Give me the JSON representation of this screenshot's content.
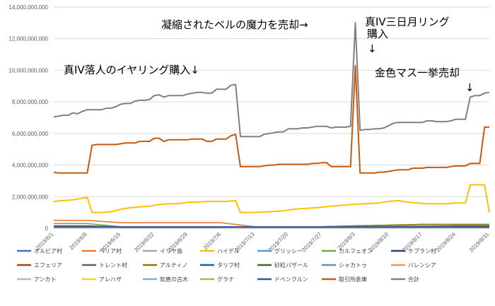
{
  "chart_data": {
    "type": "line",
    "title": "",
    "xlabel": "",
    "ylabel": "",
    "ylim": [
      0,
      14000000000
    ],
    "y_ticks": [
      "0",
      "2,000,000,000",
      "4,000,000,000",
      "6,000,000,000",
      "8,000,000,000",
      "10,000,000,000",
      "12,000,000,000",
      "14,000,000,000"
    ],
    "x_ticks": [
      "2019/6/1",
      "2019/6/8",
      "2019/6/15",
      "2019/6/22",
      "2019/6/29",
      "2019/7/6",
      "2019/7/13",
      "2019/7/20",
      "2019/7/27",
      "2019/8/3",
      "2019/8/10",
      "2019/8/17",
      "2019/8/24",
      "2019/8/31"
    ],
    "grid": "horizontal",
    "legend_position": "bottom",
    "annotations": [
      "真IV落人のイヤリング購入↓",
      "凝縮されたベルの魔力を売却→",
      "真IV三日月リング",
      "購入",
      "金色マス一挙売却",
      "↓",
      "↓"
    ],
    "series": [
      {
        "name": "オルビア村",
        "color": "#4472c4",
        "values": [
          50000000,
          50000000,
          50000000,
          50000000,
          50000000,
          50000000,
          50000000,
          50000000,
          50000000,
          50000000,
          50000000,
          50000000,
          50000000,
          50000000
        ]
      },
      {
        "name": "ベリア村",
        "color": "#ed7d31",
        "values": [
          500000000,
          500000000,
          350000000,
          350000000,
          350000000,
          350000000,
          100000000,
          100000000,
          100000000,
          100000000,
          100000000,
          100000000,
          100000000,
          100000000
        ]
      },
      {
        "name": "イリヤ島",
        "color": "#a5a5a5",
        "values": [
          100000000,
          100000000,
          100000000,
          100000000,
          100000000,
          100000000,
          100000000,
          100000000,
          100000000,
          100000000,
          100000000,
          100000000,
          100000000,
          100000000
        ]
      },
      {
        "name": "ハイデル",
        "color": "#ffc000",
        "values": [
          1650000000,
          1900000000,
          1000000000,
          1300000000,
          1550000000,
          1650000000,
          1000000000,
          1150000000,
          1300000000,
          1450000000,
          1600000000,
          1650000000,
          1550000000,
          1000000000
        ]
      },
      {
        "name": "グリッシー",
        "color": "#5b9bd5",
        "values": [
          100000000,
          100000000,
          100000000,
          100000000,
          100000000,
          100000000,
          100000000,
          100000000,
          100000000,
          100000000,
          100000000,
          100000000,
          100000000,
          100000000
        ]
      },
      {
        "name": "カルフェオン",
        "color": "#70ad47",
        "values": [
          300000000,
          300000000,
          100000000,
          100000000,
          100000000,
          100000000,
          100000000,
          100000000,
          100000000,
          150000000,
          150000000,
          150000000,
          150000000,
          150000000
        ]
      },
      {
        "name": "ケプラン村",
        "color": "#264478",
        "values": [
          100000000,
          100000000,
          100000000,
          100000000,
          100000000,
          100000000,
          100000000,
          100000000,
          100000000,
          100000000,
          100000000,
          100000000,
          100000000,
          100000000
        ]
      },
      {
        "name": "エフェリア",
        "color": "#9e480e",
        "values": [
          150000000,
          150000000,
          100000000,
          100000000,
          100000000,
          100000000,
          100000000,
          100000000,
          100000000,
          100000000,
          100000000,
          100000000,
          100000000,
          100000000
        ]
      },
      {
        "name": "トレント村",
        "color": "#636363",
        "values": [
          100000000,
          100000000,
          50000000,
          50000000,
          50000000,
          50000000,
          50000000,
          50000000,
          50000000,
          50000000,
          50000000,
          50000000,
          50000000,
          50000000
        ]
      },
      {
        "name": "アルティノ",
        "color": "#997300",
        "values": [
          100000000,
          100000000,
          100000000,
          100000000,
          100000000,
          100000000,
          100000000,
          100000000,
          100000000,
          150000000,
          200000000,
          250000000,
          250000000,
          250000000
        ]
      },
      {
        "name": "タリフ村",
        "color": "#255e91",
        "values": [
          100000000,
          100000000,
          100000000,
          100000000,
          100000000,
          100000000,
          100000000,
          100000000,
          100000000,
          100000000,
          100000000,
          100000000,
          100000000,
          100000000
        ]
      },
      {
        "name": "砂粒バザール",
        "color": "#43682b",
        "values": [
          100000000,
          100000000,
          100000000,
          100000000,
          100000000,
          100000000,
          100000000,
          100000000,
          100000000,
          100000000,
          100000000,
          100000000,
          150000000,
          150000000
        ]
      },
      {
        "name": "シャカトゥ",
        "color": "#698ed0",
        "values": [
          100000000,
          100000000,
          100000000,
          100000000,
          100000000,
          100000000,
          100000000,
          100000000,
          100000000,
          100000000,
          100000000,
          100000000,
          100000000,
          100000000
        ]
      },
      {
        "name": "バレンシア",
        "color": "#f1975a",
        "values": [
          100000000,
          100000000,
          100000000,
          100000000,
          100000000,
          100000000,
          100000000,
          100000000,
          100000000,
          100000000,
          100000000,
          100000000,
          100000000,
          100000000
        ]
      },
      {
        "name": "アンカト",
        "color": "#b7b7b7",
        "values": [
          100000000,
          100000000,
          100000000,
          100000000,
          100000000,
          100000000,
          100000000,
          100000000,
          100000000,
          100000000,
          100000000,
          100000000,
          100000000,
          100000000
        ]
      },
      {
        "name": "アレハザ",
        "color": "#ffcd33",
        "values": [
          100000000,
          100000000,
          100000000,
          100000000,
          100000000,
          100000000,
          100000000,
          100000000,
          100000000,
          100000000,
          100000000,
          100000000,
          100000000,
          100000000
        ]
      },
      {
        "name": "知恵の古木",
        "color": "#7cafdd",
        "values": [
          100000000,
          100000000,
          100000000,
          100000000,
          100000000,
          100000000,
          100000000,
          100000000,
          100000000,
          100000000,
          100000000,
          100000000,
          100000000,
          100000000
        ]
      },
      {
        "name": "グラナ",
        "color": "#8cc168",
        "values": [
          100000000,
          100000000,
          100000000,
          100000000,
          100000000,
          100000000,
          100000000,
          100000000,
          100000000,
          100000000,
          100000000,
          100000000,
          100000000,
          100000000
        ]
      },
      {
        "name": "ドベンクルン",
        "color": "#335aa1",
        "values": [
          100000000,
          100000000,
          100000000,
          100000000,
          100000000,
          100000000,
          100000000,
          100000000,
          100000000,
          100000000,
          100000000,
          100000000,
          100000000,
          100000000
        ]
      },
      {
        "name": "取引所倉庫",
        "color": "#c55a11",
        "values": [
          3500000000,
          3500000000,
          5300000000,
          5400000000,
          5600000000,
          5700000000,
          3900000000,
          4050000000,
          4100000000,
          3900000000,
          3550000000,
          3800000000,
          3850000000,
          6400000000
        ]
      },
      {
        "name": "合計",
        "color": "#808080",
        "values": [
          7000000000,
          7500000000,
          7800000000,
          8200000000,
          8500000000,
          8800000000,
          5800000000,
          6100000000,
          6400000000,
          6400000000,
          6300000000,
          6700000000,
          6800000000,
          8600000000
        ]
      }
    ],
    "total_detail": {
      "x": [
        0,
        1,
        2,
        3,
        4,
        5,
        6,
        7,
        8,
        9,
        10,
        11,
        12,
        13,
        14,
        15,
        16,
        17,
        18,
        19,
        20,
        21,
        22,
        23,
        24,
        25,
        26,
        27,
        28,
        29,
        30,
        31,
        32,
        33,
        34,
        35,
        36,
        37,
        38,
        39,
        40,
        41,
        42,
        43,
        44,
        45,
        46,
        47,
        48,
        49,
        50,
        51,
        52,
        53,
        54,
        55,
        56,
        57,
        58,
        59,
        60,
        61,
        62,
        63,
        64,
        65,
        66,
        67,
        68,
        69,
        70,
        71,
        72,
        73,
        74,
        75,
        76,
        77,
        78,
        79,
        80,
        81,
        82,
        83,
        84,
        85,
        86,
        87,
        88,
        89,
        90,
        91
      ],
      "values": [
        7050000000,
        7100000000,
        7150000000,
        7150000000,
        7300000000,
        7250000000,
        7400000000,
        7500000000,
        7500000000,
        7500000000,
        7500000000,
        7600000000,
        7600000000,
        7700000000,
        7850000000,
        7900000000,
        7900000000,
        8050000000,
        8100000000,
        8100000000,
        8150000000,
        8400000000,
        8450000000,
        8300000000,
        8400000000,
        8400000000,
        8400000000,
        8400000000,
        8500000000,
        8550000000,
        8600000000,
        8600000000,
        8550000000,
        8550000000,
        8800000000,
        8800000000,
        8800000000,
        9050000000,
        9100000000,
        5800000000,
        5800000000,
        5800000000,
        5800000000,
        5800000000,
        5950000000,
        6000000000,
        6050000000,
        6100000000,
        6100000000,
        6300000000,
        6300000000,
        6300000000,
        6350000000,
        6350000000,
        6400000000,
        6450000000,
        6450000000,
        6450000000,
        6350000000,
        6400000000,
        6400000000,
        6400000000,
        6450000000,
        13000000000,
        6200000000,
        6250000000,
        6250000000,
        6300000000,
        6300000000,
        6350000000,
        6500000000,
        6650000000,
        6700000000,
        6700000000,
        6700000000,
        6700000000,
        6700000000,
        6700000000,
        6800000000,
        6800000000,
        6750000000,
        6750000000,
        6750000000,
        6800000000,
        6900000000,
        6900000000,
        6900000000,
        8300000000,
        8400000000,
        8400000000,
        8550000000,
        8600000000
      ]
    },
    "warehouse_detail": {
      "x": [
        0,
        1,
        2,
        3,
        4,
        5,
        6,
        7,
        8,
        9,
        10,
        11,
        12,
        13,
        14,
        15,
        16,
        17,
        18,
        19,
        20,
        21,
        22,
        23,
        24,
        25,
        26,
        27,
        28,
        29,
        30,
        31,
        32,
        33,
        34,
        35,
        36,
        37,
        38,
        39,
        40,
        41,
        42,
        43,
        44,
        45,
        46,
        47,
        48,
        49,
        50,
        51,
        52,
        53,
        54,
        55,
        56,
        57,
        58,
        59,
        60,
        61,
        62,
        63,
        64,
        65,
        66,
        67,
        68,
        69,
        70,
        71,
        72,
        73,
        74,
        75,
        76,
        77,
        78,
        79,
        80,
        81,
        82,
        83,
        84,
        85,
        86,
        87,
        88,
        89,
        90,
        91
      ],
      "values": [
        3550000000,
        3500000000,
        3500000000,
        3500000000,
        3500000000,
        3500000000,
        3500000000,
        3500000000,
        5250000000,
        5300000000,
        5300000000,
        5300000000,
        5300000000,
        5300000000,
        5350000000,
        5400000000,
        5400000000,
        5400000000,
        5500000000,
        5500000000,
        5500000000,
        5700000000,
        5700000000,
        5500000000,
        5600000000,
        5600000000,
        5600000000,
        5600000000,
        5600000000,
        5650000000,
        5650000000,
        5650000000,
        5500000000,
        5500000000,
        5650000000,
        5650000000,
        5650000000,
        5850000000,
        5950000000,
        3900000000,
        3900000000,
        3900000000,
        3900000000,
        3900000000,
        3950000000,
        4000000000,
        4000000000,
        4050000000,
        4050000000,
        4050000000,
        4050000000,
        4050000000,
        4050000000,
        4050000000,
        4100000000,
        4100000000,
        4150000000,
        4150000000,
        3900000000,
        3900000000,
        3900000000,
        3900000000,
        3900000000,
        10300000000,
        3500000000,
        3500000000,
        3500000000,
        3500000000,
        3550000000,
        3550000000,
        3600000000,
        3650000000,
        3700000000,
        3700000000,
        3700000000,
        3800000000,
        3800000000,
        3800000000,
        3850000000,
        3850000000,
        3850000000,
        3850000000,
        3850000000,
        3900000000,
        3950000000,
        3950000000,
        3950000000,
        4100000000,
        4100000000,
        4100000000,
        6400000000,
        6400000000
      ]
    },
    "heidel_detail": {
      "x": [
        0,
        2,
        4,
        6,
        7,
        8,
        10,
        12,
        14,
        16,
        18,
        20,
        22,
        24,
        26,
        28,
        30,
        32,
        34,
        36,
        38,
        39,
        42,
        45,
        48,
        50,
        52,
        55,
        58,
        60,
        62,
        65,
        68,
        70,
        72,
        74,
        76,
        78,
        80,
        82,
        84,
        86,
        87,
        89,
        90,
        91
      ],
      "values": [
        1700000000,
        1750000000,
        1800000000,
        1900000000,
        1950000000,
        1000000000,
        1000000000,
        1050000000,
        1200000000,
        1300000000,
        1350000000,
        1400000000,
        1500000000,
        1550000000,
        1550000000,
        1650000000,
        1650000000,
        1700000000,
        1700000000,
        1700000000,
        1750000000,
        1000000000,
        1000000000,
        1050000000,
        1100000000,
        1200000000,
        1250000000,
        1300000000,
        1400000000,
        1450000000,
        1500000000,
        1550000000,
        1600000000,
        1700000000,
        1750000000,
        1650000000,
        1600000000,
        1550000000,
        1550000000,
        1550000000,
        1600000000,
        1600000000,
        2750000000,
        2750000000,
        2750000000,
        1000000000
      ]
    }
  }
}
